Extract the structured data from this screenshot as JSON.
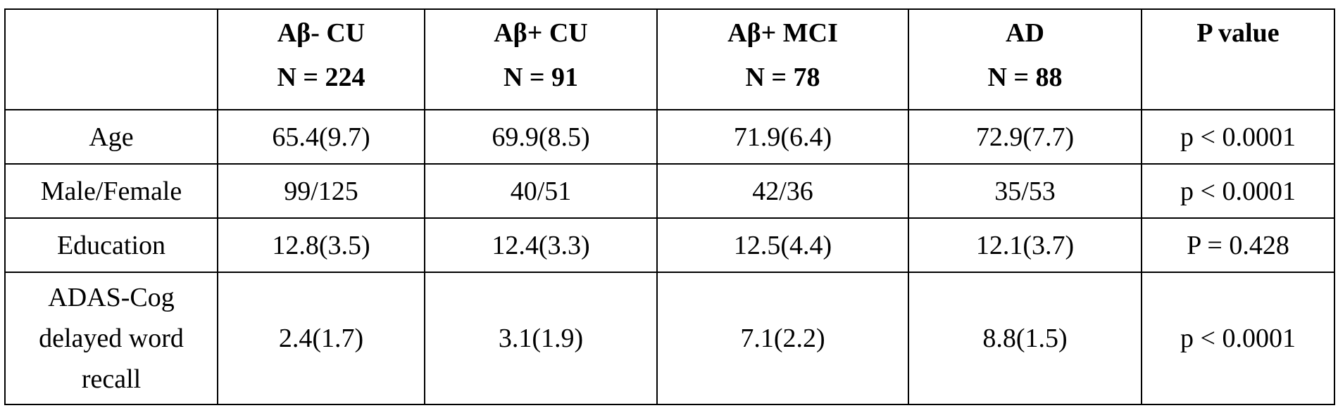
{
  "table": {
    "headers": [
      {
        "line1": "",
        "line2": ""
      },
      {
        "line1": "Aβ- CU",
        "line2": "N = 224"
      },
      {
        "line1": "Aβ+ CU",
        "line2": "N = 91"
      },
      {
        "line1": "Aβ+ MCI",
        "line2": "N = 78"
      },
      {
        "line1": "AD",
        "line2": "N = 88"
      },
      {
        "line1": "P value",
        "line2": ""
      }
    ],
    "rows": [
      {
        "label": "Age",
        "cells": [
          "65.4(9.7)",
          "69.9(8.5)",
          "71.9(6.4)",
          "72.9(7.7)",
          "p < 0.0001"
        ]
      },
      {
        "label": "Male/Female",
        "cells": [
          "99/125",
          "40/51",
          "42/36",
          "35/53",
          "p < 0.0001"
        ]
      },
      {
        "label": "Education",
        "cells": [
          "12.8(3.5)",
          "12.4(3.3)",
          "12.5(4.4)",
          "12.1(3.7)",
          "P = 0.428"
        ]
      },
      {
        "label_lines": [
          "ADAS-Cog",
          "delayed word",
          "recall"
        ],
        "cells": [
          "2.4(1.7)",
          "3.1(1.9)",
          "7.1(2.2)",
          "8.8(1.5)",
          "p < 0.0001"
        ]
      }
    ]
  }
}
